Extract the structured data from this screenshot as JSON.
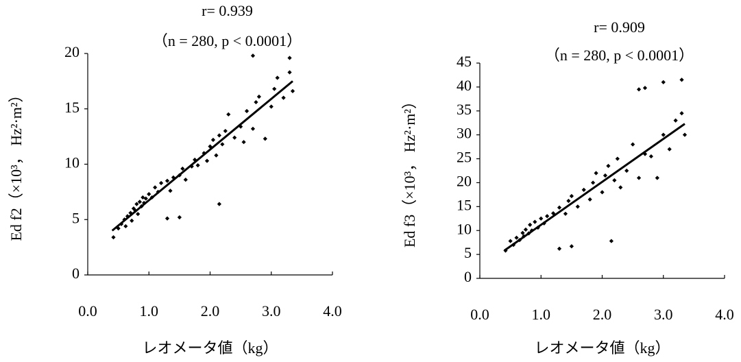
{
  "chart_data": [
    {
      "type": "scatter",
      "title": "r= 0.939",
      "subtitle": "（n = 280, p < 0.0001）",
      "x_label": "レオメータ値（kg）",
      "y_label": "Ed f2（×10³， Hz²·m²）",
      "color": "#000000",
      "xlim": [
        0,
        4
      ],
      "ylim": [
        0,
        20
      ],
      "xticks": [
        {
          "value": 0,
          "label": "0.0"
        },
        {
          "value": 1,
          "label": "1.0"
        },
        {
          "value": 2,
          "label": "2.0"
        },
        {
          "value": 3,
          "label": "3.0"
        },
        {
          "value": 4,
          "label": "4.0"
        }
      ],
      "yticks": [
        0,
        5,
        10,
        15,
        20
      ],
      "x": [
        0.42,
        0.5,
        0.55,
        0.6,
        0.62,
        0.65,
        0.7,
        0.72,
        0.75,
        0.78,
        0.8,
        0.82,
        0.85,
        0.88,
        0.9,
        0.92,
        0.95,
        1.0,
        1.05,
        1.1,
        1.15,
        1.2,
        1.3,
        1.35,
        1.4,
        1.5,
        1.55,
        1.6,
        1.7,
        1.75,
        1.8,
        1.9,
        1.95,
        2.0,
        2.05,
        2.1,
        2.15,
        2.2,
        2.25,
        2.3,
        2.4,
        2.5,
        2.55,
        2.6,
        2.7,
        2.75,
        2.8,
        2.9,
        3.0,
        3.05,
        3.1,
        3.2,
        3.3,
        3.35,
        1.3,
        1.5,
        2.15,
        2.7,
        3.3
      ],
      "y": [
        3.4,
        4.2,
        4.6,
        5.0,
        4.4,
        5.3,
        5.6,
        4.9,
        6.0,
        5.8,
        6.4,
        5.5,
        6.6,
        6.2,
        7.0,
        6.5,
        6.9,
        7.3,
        7.0,
        7.9,
        7.5,
        8.3,
        8.5,
        7.6,
        8.8,
        9.0,
        9.6,
        8.6,
        9.8,
        10.4,
        9.9,
        11.0,
        10.3,
        11.6,
        12.2,
        10.8,
        12.6,
        11.8,
        13.0,
        14.5,
        12.4,
        13.4,
        12.0,
        14.8,
        13.2,
        15.6,
        16.1,
        12.3,
        15.2,
        16.8,
        17.8,
        16.0,
        18.3,
        16.6,
        5.1,
        5.2,
        6.4,
        19.8,
        19.6
      ],
      "fit_line": {
        "x": [
          0.4,
          3.35
        ],
        "y": [
          4.0,
          17.5
        ]
      }
    },
    {
      "type": "scatter",
      "title": "r= 0.909",
      "subtitle": "（n = 280, p < 0.0001）",
      "x_label": "レオメータ値（kg）",
      "y_label": "Ed f3（×10³， Hz²·m²）",
      "color": "#000000",
      "xlim": [
        0,
        4
      ],
      "ylim": [
        0,
        45
      ],
      "xticks": [
        {
          "value": 0,
          "label": "0.0"
        },
        {
          "value": 1,
          "label": "1.0"
        },
        {
          "value": 2,
          "label": "2.0"
        },
        {
          "value": 3,
          "label": "3.0"
        },
        {
          "value": 4,
          "label": "4.0"
        }
      ],
      "yticks": [
        0,
        5,
        10,
        15,
        20,
        25,
        30,
        35,
        40,
        45
      ],
      "x": [
        0.42,
        0.5,
        0.55,
        0.6,
        0.65,
        0.7,
        0.72,
        0.75,
        0.8,
        0.82,
        0.85,
        0.9,
        0.95,
        1.0,
        1.05,
        1.1,
        1.2,
        1.3,
        1.4,
        1.45,
        1.5,
        1.6,
        1.7,
        1.8,
        1.85,
        1.9,
        2.0,
        2.05,
        2.1,
        2.2,
        2.25,
        2.3,
        2.4,
        2.5,
        2.6,
        2.7,
        2.8,
        2.9,
        3.0,
        3.1,
        3.2,
        3.3,
        3.35,
        1.3,
        1.5,
        2.15,
        2.6,
        2.7,
        3.0,
        3.3
      ],
      "y": [
        5.8,
        7.8,
        7.0,
        8.5,
        8.0,
        9.5,
        8.8,
        10.2,
        9.4,
        11.2,
        10.0,
        11.8,
        10.6,
        12.5,
        11.5,
        13.0,
        13.6,
        14.8,
        13.5,
        16.2,
        17.2,
        15.0,
        18.5,
        16.5,
        20.0,
        22.0,
        18.0,
        21.5,
        23.5,
        20.5,
        25.0,
        19.0,
        22.5,
        28.0,
        21.0,
        26.0,
        25.5,
        21.0,
        30.0,
        27.0,
        33.0,
        34.5,
        30.0,
        6.2,
        6.7,
        7.8,
        39.5,
        39.8,
        41.0,
        41.5
      ],
      "fit_line": {
        "x": [
          0.4,
          3.35
        ],
        "y": [
          5.8,
          32.3
        ]
      }
    }
  ]
}
